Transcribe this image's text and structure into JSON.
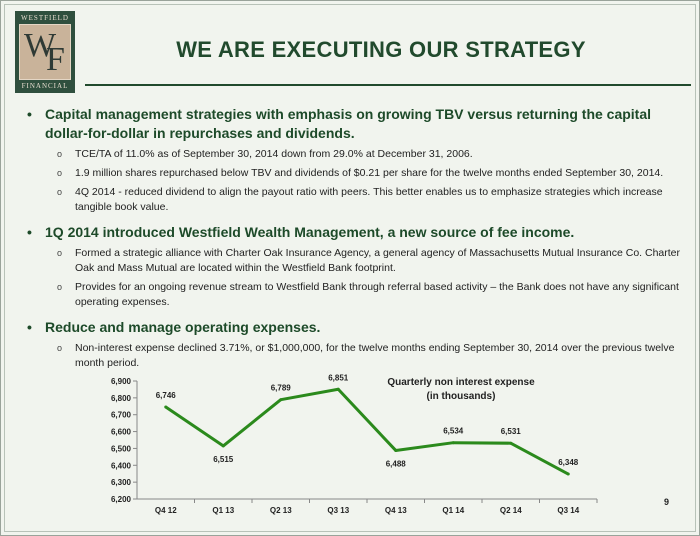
{
  "logo": {
    "top_text": "WESTFIELD",
    "bottom_text": "FINANCIAL",
    "letters": [
      "W",
      "F"
    ]
  },
  "title": "WE ARE EXECUTING OUR STRATEGY",
  "bullets": [
    {
      "text": "Capital management strategies with emphasis on growing TBV versus returning the capital dollar-for-dollar in repurchases and dividends.",
      "subs": [
        "TCE/TA of 11.0% as of September 30, 2014 down from 29.0% at December 31, 2006.",
        "1.9 million shares repurchased below TBV and dividends of $0.21 per share for the twelve months ended September 30, 2014.",
        "4Q 2014 - reduced dividend to align the payout ratio with peers. This better enables us to emphasize strategies which increase tangible book value."
      ]
    },
    {
      "text": "1Q 2014 introduced Westfield Wealth Management, a new source of fee income.",
      "subs": [
        "Formed a strategic alliance with Charter Oak Insurance Agency, a general agency of Massachusetts Mutual Insurance Co. Charter Oak and Mass Mutual are located within the Westfield Bank footprint.",
        "Provides for an ongoing revenue stream to Westfield Bank through referral based activity – the Bank does not have any significant operating expenses."
      ]
    },
    {
      "text": "Reduce and manage operating expenses.",
      "subs": [
        "Non-interest expense declined 3.71%, or $1,000,000, for the twelve months ending September 30, 2014 over the previous twelve month period."
      ]
    }
  ],
  "bullet_marks": {
    "main": "•",
    "sub": "o"
  },
  "chart_data": {
    "type": "line",
    "title": "Quarterly non interest expense",
    "subtitle": "(in thousands)",
    "categories": [
      "Q4 12",
      "Q1 13",
      "Q2 13",
      "Q3 13",
      "Q4 13",
      "Q1 14",
      "Q2 14",
      "Q3 14"
    ],
    "values": [
      6746,
      6515,
      6789,
      6851,
      6488,
      6534,
      6531,
      6348
    ],
    "data_labels": [
      "6,746",
      "6,515",
      "6,789",
      "6,851",
      "6,488",
      "6,534",
      "6,531",
      "6,348"
    ],
    "ylim": [
      6200,
      6900
    ],
    "yticks": [
      6200,
      6300,
      6400,
      6500,
      6600,
      6700,
      6800,
      6900
    ],
    "ytick_labels": [
      "6,200",
      "6,300",
      "6,400",
      "6,500",
      "6,600",
      "6,700",
      "6,800",
      "6,900"
    ],
    "line_color": "#2b8a1c",
    "grid": false
  },
  "page_number": "9"
}
